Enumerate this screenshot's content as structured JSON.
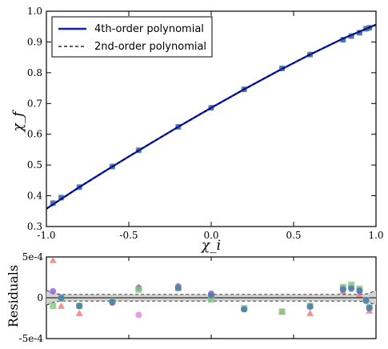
{
  "chart_data": [
    {
      "type": "line",
      "xlabel": "χ_i",
      "ylabel": "χ_f",
      "xlim": [
        -1.0,
        1.0
      ],
      "ylim": [
        0.3,
        1.0
      ],
      "x_ticks": [
        -1.0,
        -0.5,
        0.0,
        0.5,
        1.0
      ],
      "x_tick_labels": [
        "-1.0",
        "-0.5",
        "0.0",
        "0.5",
        "1.0"
      ],
      "y_ticks": [
        0.3,
        0.4,
        0.5,
        0.6,
        0.7,
        0.8,
        0.9,
        1.0
      ],
      "y_tick_labels": [
        "0.3",
        "0.4",
        "0.5",
        "0.6",
        "0.7",
        "0.8",
        "0.9",
        "1.0"
      ],
      "legend": {
        "placement": "top-left",
        "entries": [
          "4th-order polynomial",
          "2nd-order polynomial"
        ]
      },
      "series": [
        {
          "name": "4th-order polynomial",
          "style": "solid",
          "color": "#0a1fd6",
          "x": [
            -1.0,
            -0.8,
            -0.6,
            -0.4,
            -0.2,
            0.0,
            0.2,
            0.4,
            0.6,
            0.8,
            1.0
          ],
          "y": [
            0.358,
            0.428,
            0.495,
            0.56,
            0.624,
            0.686,
            0.746,
            0.804,
            0.859,
            0.911,
            0.956
          ]
        },
        {
          "name": "2nd-order polynomial",
          "style": "dashed",
          "color": "#000000",
          "x": [
            -1.0,
            -0.8,
            -0.6,
            -0.4,
            -0.2,
            0.0,
            0.2,
            0.4,
            0.6,
            0.8,
            1.0
          ],
          "y": [
            0.357,
            0.428,
            0.495,
            0.561,
            0.624,
            0.686,
            0.746,
            0.804,
            0.86,
            0.911,
            0.957
          ]
        }
      ],
      "points": {
        "x": [
          -0.96,
          -0.91,
          -0.8,
          -0.6,
          -0.44,
          -0.2,
          0.0,
          0.2,
          0.43,
          0.6,
          0.8,
          0.85,
          0.9,
          0.94,
          0.96
        ],
        "y": [
          0.376,
          0.394,
          0.428,
          0.495,
          0.548,
          0.624,
          0.686,
          0.746,
          0.814,
          0.859,
          0.907,
          0.919,
          0.93,
          0.943,
          0.946
        ],
        "colors": [
          "#5a8a8a",
          "#4a6fa8"
        ]
      }
    },
    {
      "type": "scatter",
      "ylabel": "Residuals",
      "xlim": [
        -1.0,
        1.0
      ],
      "ylim": [
        -0.0005,
        0.0005
      ],
      "y_ticks": [
        -0.0005,
        0.0,
        0.0005
      ],
      "y_tick_labels": [
        "-5e-4",
        "0",
        "5e-4"
      ],
      "band": {
        "x": [
          -1.0,
          -0.95,
          -0.9,
          -0.7,
          -0.5,
          -0.3,
          0.0,
          0.3,
          0.5,
          0.7,
          0.9,
          0.95,
          1.0
        ],
        "upper": [
          9e-05,
          5e-05,
          4e-05,
          4e-05,
          4e-05,
          4e-05,
          4e-05,
          4e-05,
          4e-05,
          4e-05,
          4e-05,
          5e-05,
          9e-05
        ],
        "lower": [
          -9e-05,
          -5e-05,
          -4e-05,
          -4e-05,
          -4e-05,
          -4e-05,
          -4e-05,
          -4e-05,
          -4e-05,
          -4e-05,
          -4e-05,
          -5e-05,
          -9e-05
        ]
      },
      "series": [
        {
          "marker": "triangle",
          "color": "#f08080",
          "x": [
            -0.96,
            -0.91,
            -0.8,
            -0.44,
            -0.2,
            0.0,
            0.43,
            0.6,
            0.8,
            0.9,
            0.96
          ],
          "y": [
            0.00046,
            -0.0001,
            -0.00019,
            0.00013,
            0.00013,
            2e-05,
            -0.00017,
            -0.00019,
            8e-05,
            4e-05,
            -0.00016
          ]
        },
        {
          "marker": "circle",
          "color": "#9b59d6",
          "x": [
            -0.96,
            -0.91,
            -0.8,
            -0.6,
            -0.44,
            -0.2,
            0.0,
            0.2,
            0.6,
            0.8,
            0.85,
            0.9,
            0.94,
            0.96
          ],
          "y": [
            8e-05,
            -1e-05,
            -0.0001,
            -6e-05,
            0.00012,
            0.00014,
            5e-05,
            -0.00014,
            -0.0001,
            0.00012,
            0.00013,
            8e-05,
            -4e-05,
            -0.00013
          ]
        },
        {
          "marker": "circle",
          "color": "#e086e0",
          "x": [
            -0.44
          ],
          "y": [
            -0.00021
          ]
        },
        {
          "marker": "square",
          "color": "#7fc97f",
          "x": [
            -0.96,
            -0.91,
            -0.8,
            -0.6,
            -0.44,
            -0.2,
            0.0,
            0.2,
            0.43,
            0.6,
            0.8,
            0.85,
            0.9,
            0.94,
            0.96
          ],
          "y": [
            -0.0001,
            -1e-05,
            -0.0001,
            -4e-05,
            0.0001,
            0.00012,
            -2e-05,
            -0.00013,
            -0.00017,
            -0.0001,
            0.00013,
            0.00016,
            0.00011,
            -3e-05,
            -0.00012
          ]
        },
        {
          "marker": "circle",
          "color": "#4a78b0",
          "x": [
            -0.91,
            -0.8,
            -0.6,
            -0.2,
            0.0,
            0.2,
            0.6,
            0.8,
            0.85,
            0.9,
            0.94,
            0.96
          ],
          "y": [
            0.0,
            -0.0001,
            -5e-05,
            0.00012,
            3e-05,
            -0.00014,
            -0.00011,
            0.0001,
            0.00011,
            9e-05,
            -3e-05,
            -0.00012
          ]
        }
      ]
    }
  ]
}
